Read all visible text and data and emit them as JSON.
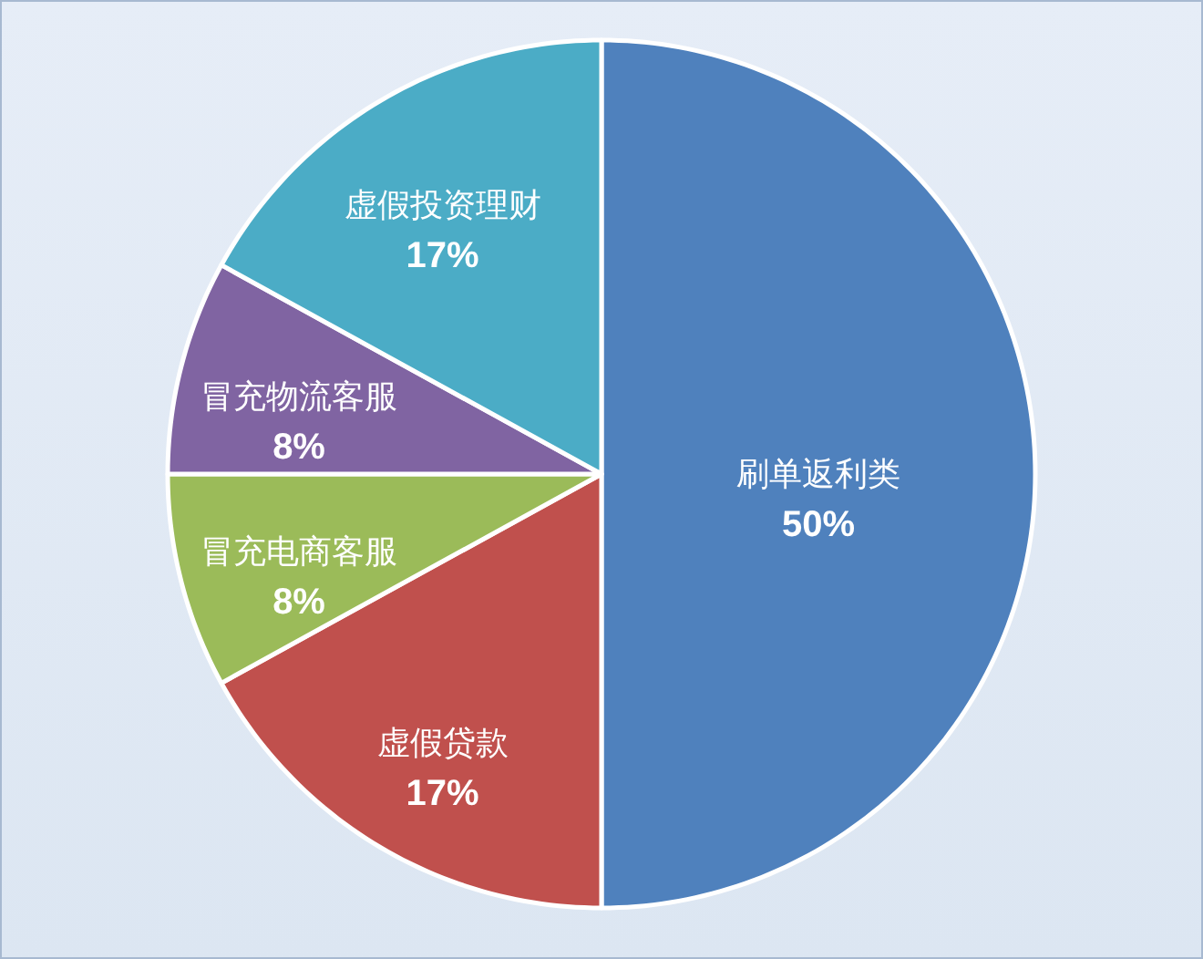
{
  "chart_data": {
    "type": "pie",
    "categories": [
      "刷单返利类",
      "虚假贷款",
      "冒充电商客服",
      "冒充物流客服",
      "虚假投资理财"
    ],
    "values": [
      50,
      17,
      8,
      8,
      17
    ],
    "value_labels": [
      "50%",
      "17%",
      "8%",
      "8%",
      "17%"
    ],
    "colors": [
      "#4f81bd",
      "#c0504d",
      "#9bbb59",
      "#8064a2",
      "#4bacc6"
    ]
  }
}
